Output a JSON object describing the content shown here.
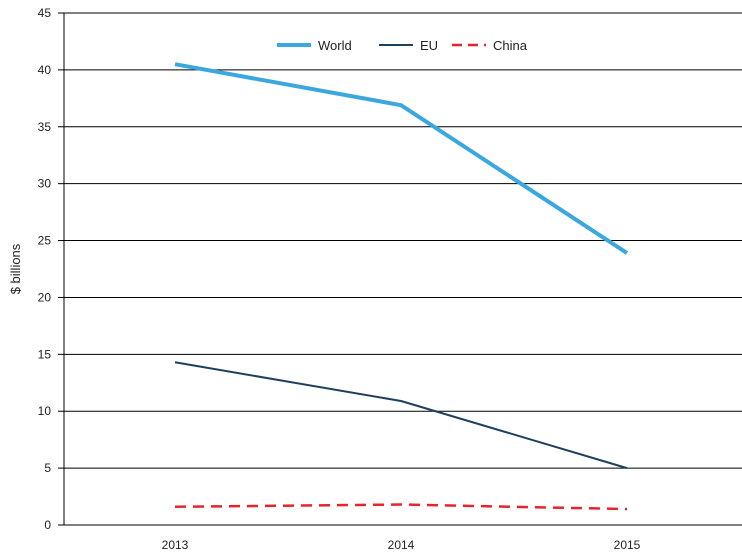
{
  "chart_data": {
    "type": "line",
    "title": "",
    "xlabel": "",
    "ylabel": "$ billions",
    "categories": [
      "2013",
      "2014",
      "2015"
    ],
    "ylim": [
      0,
      45
    ],
    "yticks": [
      0,
      5,
      10,
      15,
      20,
      25,
      30,
      35,
      40,
      45
    ],
    "grid": true,
    "legend_position": "top-center",
    "series": [
      {
        "name": "World",
        "values": [
          40.5,
          36.9,
          23.9
        ],
        "color": "#3aa8de",
        "style": "solid",
        "weight": "thick"
      },
      {
        "name": "EU",
        "values": [
          14.3,
          10.9,
          5.0
        ],
        "color": "#1f3f5e",
        "style": "solid",
        "weight": "thin"
      },
      {
        "name": "China",
        "values": [
          1.6,
          1.8,
          1.4
        ],
        "color": "#e8242b",
        "style": "dashed",
        "weight": "medium"
      }
    ]
  }
}
